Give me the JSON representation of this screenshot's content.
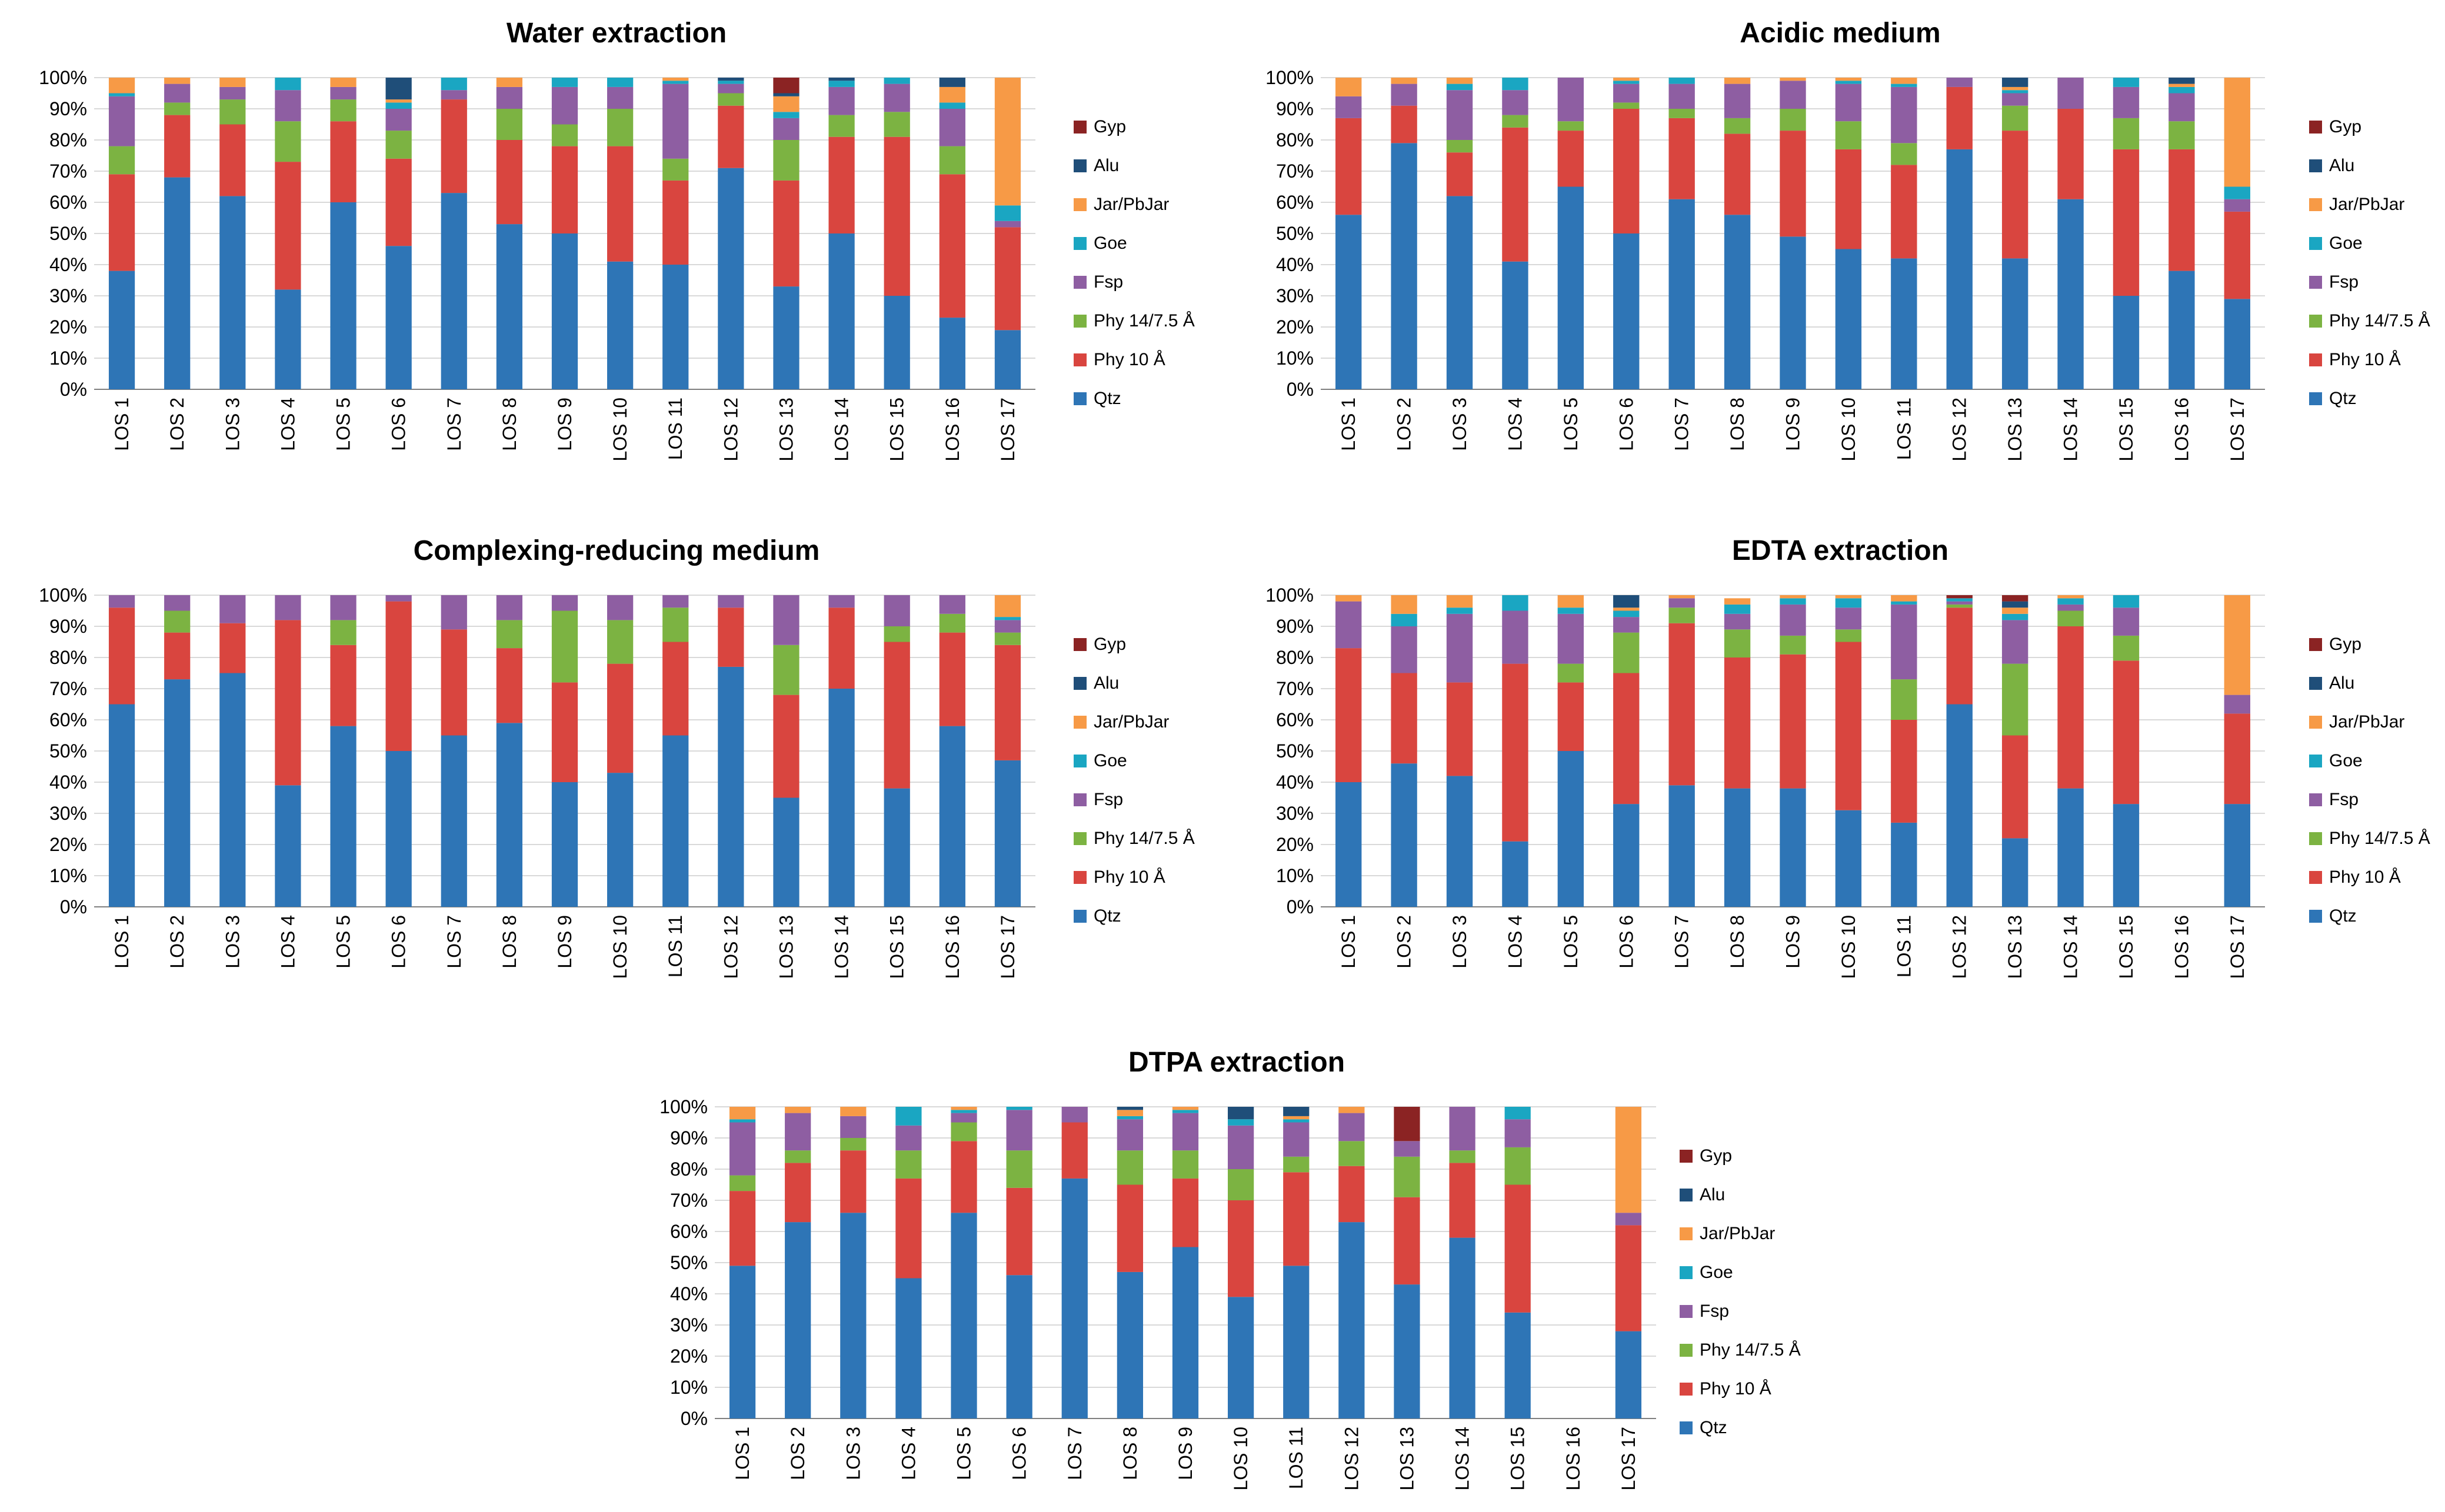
{
  "legend": [
    "Gyp",
    "Alu",
    "Jar/PbJar",
    "Goe",
    "Fsp",
    "Phy 14/7.5 Å",
    "Phy 10 Å",
    "Qtz"
  ],
  "colors": {
    "Qtz": "#2e75b6",
    "Phy 10 Å": "#d9453f",
    "Phy 14/7.5 Å": "#7cb342",
    "Fsp": "#8e5ea2",
    "Goe": "#1aa6c2",
    "Jar/PbJar": "#f79a46",
    "Alu": "#1f4e79",
    "Gyp": "#8b2323"
  },
  "y_tick_labels": [
    "0%",
    "10%",
    "20%",
    "30%",
    "40%",
    "50%",
    "60%",
    "70%",
    "80%",
    "90%",
    "100%"
  ],
  "chart_data": [
    {
      "type": "bar",
      "stacked": true,
      "title": "Water extraction",
      "categories": [
        "LOS 1",
        "LOS 2",
        "LOS 3",
        "LOS 4",
        "LOS 5",
        "LOS 6",
        "LOS 7",
        "LOS 8",
        "LOS 9",
        "LOS 10",
        "LOS 11",
        "LOS 12",
        "LOS 13",
        "LOS 14",
        "LOS 15",
        "LOS 16",
        "LOS 17"
      ],
      "ylim": [
        0,
        100
      ],
      "series": [
        {
          "name": "Qtz",
          "values": [
            38,
            68,
            62,
            32,
            60,
            46,
            63,
            53,
            50,
            41,
            40,
            71,
            33,
            50,
            30,
            23,
            19
          ]
        },
        {
          "name": "Phy 10 Å",
          "values": [
            31,
            20,
            23,
            41,
            26,
            28,
            30,
            27,
            28,
            37,
            27,
            20,
            34,
            31,
            51,
            46,
            33
          ]
        },
        {
          "name": "Phy 14/7.5 Å",
          "values": [
            9,
            4,
            8,
            13,
            7,
            9,
            0,
            10,
            7,
            12,
            7,
            4,
            13,
            7,
            8,
            9,
            0
          ]
        },
        {
          "name": "Fsp",
          "values": [
            16,
            6,
            4,
            10,
            4,
            7,
            3,
            7,
            12,
            7,
            24,
            3,
            7,
            9,
            9,
            12,
            2
          ]
        },
        {
          "name": "Goe",
          "values": [
            1,
            0,
            0,
            4,
            0,
            2,
            4,
            0,
            3,
            3,
            1,
            1,
            2,
            2,
            2,
            2,
            5
          ]
        },
        {
          "name": "Jar/PbJar",
          "values": [
            5,
            2,
            3,
            0,
            3,
            1,
            0,
            3,
            0,
            0,
            1,
            0,
            5,
            0,
            0,
            5,
            41
          ]
        },
        {
          "name": "Alu",
          "values": [
            0,
            0,
            0,
            0,
            0,
            7,
            0,
            0,
            0,
            0,
            0,
            1,
            1,
            1,
            0,
            3,
            0
          ]
        },
        {
          "name": "Gyp",
          "values": [
            0,
            0,
            0,
            0,
            0,
            0,
            0,
            0,
            0,
            0,
            0,
            0,
            5,
            0,
            0,
            0,
            0
          ]
        }
      ]
    },
    {
      "type": "bar",
      "stacked": true,
      "title": "Acidic medium",
      "categories": [
        "LOS 1",
        "LOS 2",
        "LOS 3",
        "LOS 4",
        "LOS 5",
        "LOS 6",
        "LOS 7",
        "LOS 8",
        "LOS 9",
        "LOS 10",
        "LOS 11",
        "LOS 12",
        "LOS 13",
        "LOS 14",
        "LOS 15",
        "LOS 16",
        "LOS 17"
      ],
      "ylim": [
        0,
        100
      ],
      "series": [
        {
          "name": "Qtz",
          "values": [
            56,
            79,
            62,
            41,
            65,
            50,
            61,
            56,
            49,
            45,
            42,
            77,
            42,
            61,
            30,
            38,
            29
          ]
        },
        {
          "name": "Phy 10 Å",
          "values": [
            31,
            12,
            14,
            43,
            18,
            40,
            26,
            26,
            34,
            32,
            30,
            20,
            41,
            29,
            47,
            39,
            28
          ]
        },
        {
          "name": "Phy 14/7.5 Å",
          "values": [
            0,
            0,
            4,
            4,
            3,
            2,
            3,
            5,
            7,
            9,
            7,
            0,
            8,
            0,
            10,
            9,
            0
          ]
        },
        {
          "name": "Fsp",
          "values": [
            7,
            7,
            16,
            8,
            14,
            6,
            8,
            11,
            9,
            12,
            18,
            3,
            4,
            10,
            10,
            9,
            4
          ]
        },
        {
          "name": "Goe",
          "values": [
            0,
            0,
            2,
            4,
            0,
            1,
            2,
            0,
            0,
            1,
            1,
            0,
            1,
            0,
            3,
            2,
            4
          ]
        },
        {
          "name": "Jar/PbJar",
          "values": [
            6,
            2,
            2,
            0,
            0,
            1,
            0,
            2,
            1,
            1,
            2,
            0,
            1,
            0,
            0,
            1,
            35
          ]
        },
        {
          "name": "Alu",
          "values": [
            0,
            0,
            0,
            0,
            0,
            0,
            0,
            0,
            0,
            0,
            0,
            0,
            3,
            0,
            0,
            2,
            0
          ]
        },
        {
          "name": "Gyp",
          "values": [
            0,
            0,
            0,
            0,
            0,
            0,
            0,
            0,
            0,
            0,
            0,
            0,
            0,
            0,
            0,
            0,
            0
          ]
        }
      ]
    },
    {
      "type": "bar",
      "stacked": true,
      "title": "Complexing-reducing medium",
      "categories": [
        "LOS 1",
        "LOS 2",
        "LOS 3",
        "LOS 4",
        "LOS 5",
        "LOS 6",
        "LOS 7",
        "LOS 8",
        "LOS 9",
        "LOS 10",
        "LOS 11",
        "LOS 12",
        "LOS 13",
        "LOS 14",
        "LOS 15",
        "LOS 16",
        "LOS 17"
      ],
      "ylim": [
        0,
        100
      ],
      "series": [
        {
          "name": "Qtz",
          "values": [
            65,
            73,
            75,
            39,
            58,
            50,
            55,
            59,
            40,
            43,
            55,
            77,
            35,
            70,
            38,
            58,
            47
          ]
        },
        {
          "name": "Phy 10 Å",
          "values": [
            31,
            15,
            16,
            53,
            26,
            48,
            34,
            24,
            32,
            35,
            30,
            19,
            33,
            26,
            47,
            30,
            37
          ]
        },
        {
          "name": "Phy 14/7.5 Å",
          "values": [
            0,
            7,
            0,
            0,
            8,
            0,
            0,
            9,
            23,
            14,
            11,
            0,
            16,
            0,
            5,
            6,
            4
          ]
        },
        {
          "name": "Fsp",
          "values": [
            4,
            5,
            9,
            8,
            8,
            2,
            11,
            8,
            5,
            8,
            4,
            4,
            16,
            4,
            10,
            6,
            4
          ]
        },
        {
          "name": "Goe",
          "values": [
            0,
            0,
            0,
            0,
            0,
            0,
            0,
            0,
            0,
            0,
            0,
            0,
            0,
            0,
            0,
            0,
            1
          ]
        },
        {
          "name": "Jar/PbJar",
          "values": [
            0,
            0,
            0,
            0,
            0,
            0,
            0,
            0,
            0,
            0,
            0,
            0,
            0,
            0,
            0,
            0,
            7
          ]
        },
        {
          "name": "Alu",
          "values": [
            0,
            0,
            0,
            0,
            0,
            0,
            0,
            0,
            0,
            0,
            0,
            0,
            0,
            0,
            0,
            0,
            0
          ]
        },
        {
          "name": "Gyp",
          "values": [
            0,
            0,
            0,
            0,
            0,
            0,
            0,
            0,
            0,
            0,
            0,
            0,
            0,
            0,
            0,
            0,
            0
          ]
        }
      ]
    },
    {
      "type": "bar",
      "stacked": true,
      "title": "EDTA extraction",
      "categories": [
        "LOS 1",
        "LOS 2",
        "LOS 3",
        "LOS 4",
        "LOS 5",
        "LOS 6",
        "LOS 7",
        "LOS 8",
        "LOS 9",
        "LOS 10",
        "LOS 11",
        "LOS 12",
        "LOS 13",
        "LOS 14",
        "LOS 15",
        "LOS 16",
        "LOS 17"
      ],
      "ylim": [
        0,
        100
      ],
      "series": [
        {
          "name": "Qtz",
          "values": [
            40,
            46,
            42,
            21,
            50,
            33,
            39,
            38,
            38,
            31,
            27,
            65,
            22,
            38,
            33,
            0,
            33
          ]
        },
        {
          "name": "Phy 10 Å",
          "values": [
            43,
            29,
            30,
            57,
            22,
            42,
            52,
            42,
            43,
            54,
            33,
            31,
            33,
            52,
            46,
            0,
            29
          ]
        },
        {
          "name": "Phy 14/7.5 Å",
          "values": [
            0,
            0,
            0,
            0,
            6,
            13,
            5,
            9,
            6,
            4,
            13,
            1,
            23,
            5,
            8,
            0,
            0
          ]
        },
        {
          "name": "Fsp",
          "values": [
            15,
            15,
            22,
            17,
            16,
            5,
            3,
            5,
            10,
            7,
            24,
            1,
            14,
            2,
            9,
            0,
            6
          ]
        },
        {
          "name": "Goe",
          "values": [
            0,
            4,
            2,
            5,
            2,
            2,
            0,
            3,
            2,
            3,
            1,
            1,
            2,
            2,
            4,
            0,
            0
          ]
        },
        {
          "name": "Jar/PbJar",
          "values": [
            2,
            6,
            4,
            0,
            4,
            1,
            1,
            2,
            1,
            1,
            2,
            0,
            2,
            1,
            0,
            0,
            32
          ]
        },
        {
          "name": "Alu",
          "values": [
            0,
            0,
            0,
            0,
            0,
            4,
            0,
            0,
            0,
            0,
            0,
            0,
            2,
            0,
            0,
            0,
            0
          ]
        },
        {
          "name": "Gyp",
          "values": [
            0,
            0,
            0,
            0,
            0,
            0,
            0,
            0,
            0,
            0,
            0,
            1,
            2,
            0,
            0,
            0,
            0
          ]
        }
      ]
    },
    {
      "type": "bar",
      "stacked": true,
      "title": "DTPA extraction",
      "categories": [
        "LOS 1",
        "LOS 2",
        "LOS 3",
        "LOS 4",
        "LOS 5",
        "LOS 6",
        "LOS 7",
        "LOS 8",
        "LOS 9",
        "LOS 10",
        "LOS 11",
        "LOS 12",
        "LOS 13",
        "LOS 14",
        "LOS 15",
        "LOS 16",
        "LOS 17"
      ],
      "ylim": [
        0,
        100
      ],
      "series": [
        {
          "name": "Qtz",
          "values": [
            49,
            63,
            66,
            45,
            66,
            46,
            77,
            47,
            55,
            39,
            49,
            63,
            43,
            58,
            34,
            0,
            28
          ]
        },
        {
          "name": "Phy 10 Å",
          "values": [
            24,
            19,
            20,
            32,
            23,
            28,
            18,
            28,
            22,
            31,
            30,
            18,
            28,
            24,
            41,
            0,
            34
          ]
        },
        {
          "name": "Phy 14/7.5 Å",
          "values": [
            5,
            4,
            4,
            9,
            6,
            12,
            0,
            11,
            9,
            10,
            5,
            8,
            13,
            4,
            12,
            0,
            0
          ]
        },
        {
          "name": "Fsp",
          "values": [
            17,
            12,
            7,
            8,
            3,
            13,
            5,
            10,
            12,
            14,
            11,
            9,
            5,
            14,
            9,
            0,
            4
          ]
        },
        {
          "name": "Goe",
          "values": [
            1,
            0,
            0,
            6,
            1,
            1,
            0,
            1,
            1,
            2,
            1,
            0,
            0,
            0,
            4,
            0,
            0
          ]
        },
        {
          "name": "Jar/PbJar",
          "values": [
            4,
            2,
            3,
            0,
            1,
            0,
            0,
            2,
            1,
            0,
            1,
            2,
            0,
            0,
            0,
            0,
            34
          ]
        },
        {
          "name": "Alu",
          "values": [
            0,
            0,
            0,
            0,
            0,
            0,
            0,
            1,
            0,
            4,
            3,
            0,
            0,
            0,
            0,
            0,
            0
          ]
        },
        {
          "name": "Gyp",
          "values": [
            0,
            0,
            0,
            0,
            0,
            0,
            0,
            0,
            0,
            0,
            0,
            0,
            11,
            0,
            0,
            0,
            0
          ]
        }
      ]
    }
  ]
}
